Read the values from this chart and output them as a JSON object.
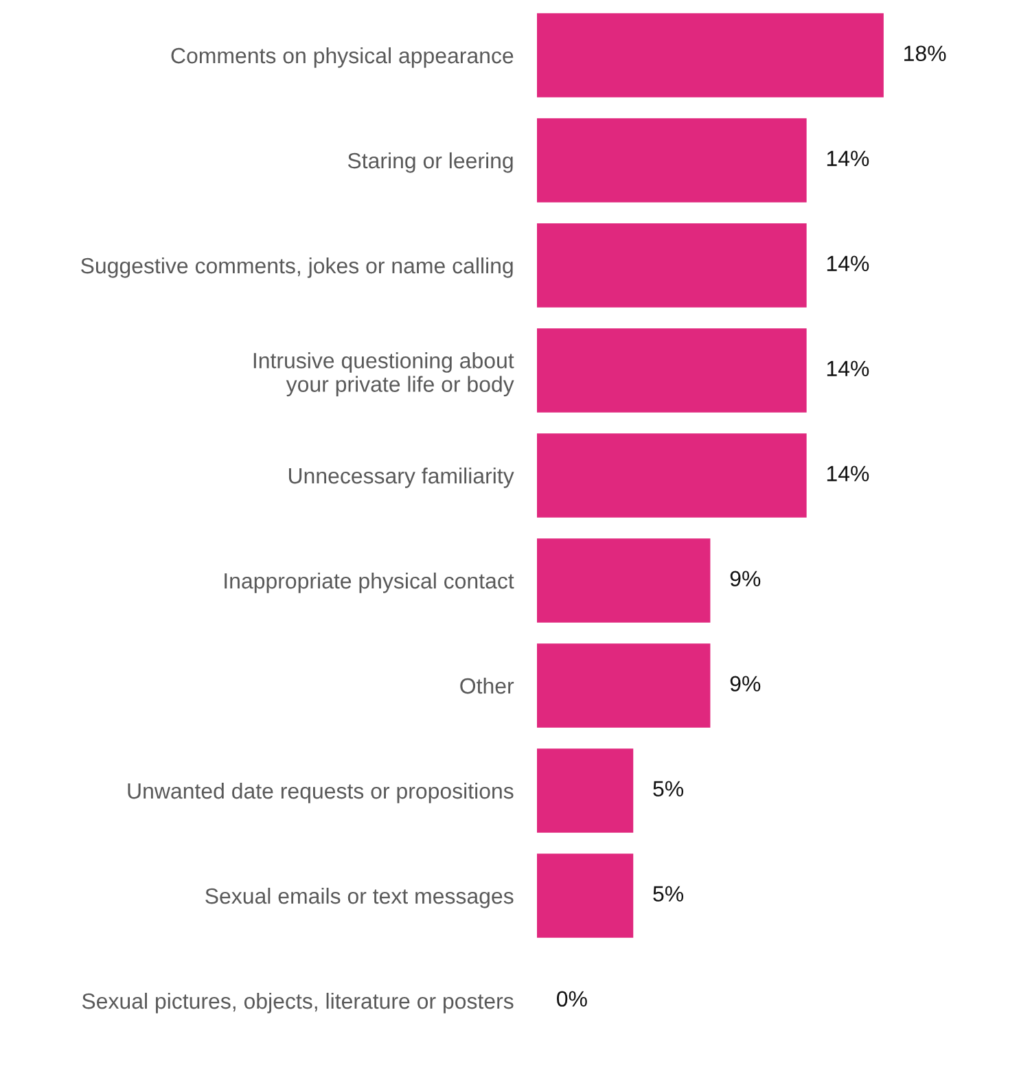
{
  "chart_data": {
    "type": "bar",
    "orientation": "horizontal",
    "categories": [
      "Comments on physical appearance",
      "Staring or leering",
      "Suggestive comments, jokes or name calling",
      "Intrusive questioning about\nyour private life or body",
      "Unnecessary familiarity",
      "Inappropriate physical contact",
      "Other",
      "Unwanted date requests or propositions",
      "Sexual emails or text messages",
      "Sexual pictures, objects, literature or posters"
    ],
    "values": [
      18,
      14,
      14,
      14,
      14,
      9,
      9,
      5,
      5,
      0
    ],
    "color": "#e0287e",
    "value_labels": [
      "18%",
      "14%",
      "14%",
      "14%",
      "14%",
      "9%",
      "9%",
      "5%",
      "5%",
      "0%"
    ],
    "grid": false,
    "legend": false
  }
}
